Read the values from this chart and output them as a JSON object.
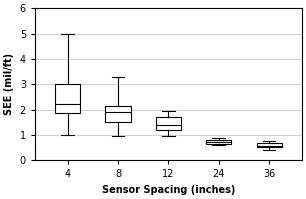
{
  "x_labels": [
    "4",
    "8",
    "12",
    "24",
    "36"
  ],
  "x_positions": [
    1,
    2,
    3,
    4,
    5
  ],
  "box_data": [
    {
      "whislo": 1.0,
      "q1": 1.85,
      "med": 2.2,
      "q3": 3.0,
      "whishi": 5.0
    },
    {
      "whislo": 0.95,
      "q1": 1.5,
      "med": 1.9,
      "q3": 2.15,
      "whishi": 3.3
    },
    {
      "whislo": 0.95,
      "q1": 1.2,
      "med": 1.4,
      "q3": 1.7,
      "whishi": 1.95
    },
    {
      "whislo": 0.6,
      "q1": 0.65,
      "med": 0.72,
      "q3": 0.8,
      "whishi": 0.88
    },
    {
      "whislo": 0.42,
      "q1": 0.52,
      "med": 0.58,
      "q3": 0.67,
      "whishi": 0.75
    }
  ],
  "ylim": [
    0,
    6
  ],
  "yticks": [
    0,
    1,
    2,
    3,
    4,
    5,
    6
  ],
  "ylabel": "SEE (mil/ft)",
  "xlabel": "Sensor Spacing (inches)",
  "box_color": "#ffffff",
  "box_edgecolor": "#000000",
  "whisker_color": "#000000",
  "median_color": "#000000",
  "cap_color": "#000000",
  "grid_color": "#d0d0d0",
  "background_color": "#ffffff",
  "box_width": 0.5,
  "linewidth": 0.8,
  "tick_fontsize": 7,
  "label_fontsize": 7
}
